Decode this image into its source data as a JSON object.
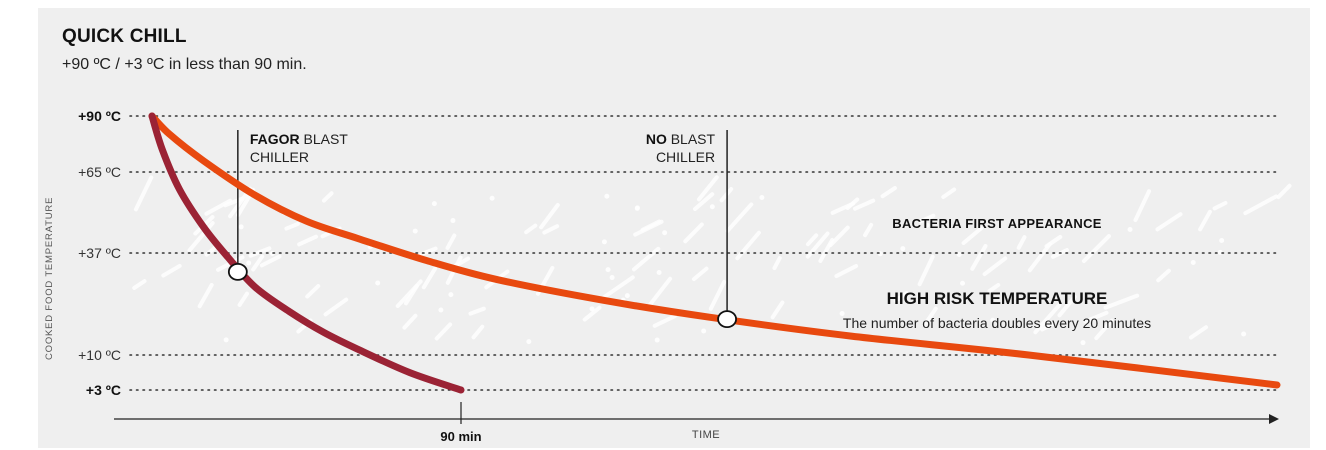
{
  "chart_data": {
    "type": "line",
    "title": "QUICK CHILL",
    "subtitle": "+90 ºC / +3 ºC in less than 90 min.",
    "xlabel": "TIME",
    "ylabel": "COOKED FOOD TEMPERATURE",
    "y_ticks": [
      {
        "label": "+90 ºC",
        "value": 90,
        "bold": true
      },
      {
        "label": "+65 ºC",
        "value": 65,
        "bold": false
      },
      {
        "label": "+37 ºC",
        "value": 37,
        "bold": false
      },
      {
        "label": "+10 ºC",
        "value": 10,
        "bold": false
      },
      {
        "label": "+3 ºC",
        "value": 3,
        "bold": true
      }
    ],
    "x_ticks": [
      {
        "label": "90 min",
        "value": 90
      }
    ],
    "xlim": [
      0,
      320
    ],
    "ylim": [
      0,
      90
    ],
    "grid": "dotted horizontal at tick values",
    "series": [
      {
        "name": "FAGOR BLAST CHILLER",
        "color": "#9b2335",
        "x": [
          0,
          3,
          8,
          15,
          22,
          30,
          40,
          50,
          60,
          75,
          90
        ],
        "y": [
          90,
          75,
          59,
          46,
          36,
          28,
          21.5,
          16,
          11.5,
          6.5,
          3
        ]
      },
      {
        "name": "NO BLAST CHILLER",
        "color": "#e8490f",
        "x": [
          0,
          5,
          15,
          30,
          45,
          60,
          80,
          100,
          130,
          160,
          200,
          250,
          320
        ],
        "y": [
          90,
          82,
          70,
          57,
          48,
          42,
          35,
          30,
          24.5,
          20,
          15,
          10,
          4
        ]
      }
    ],
    "annotations": [
      {
        "id": "fagor",
        "bold": "FAGOR",
        "rest": " BLAST",
        "line2": "CHILLER",
        "point": {
          "x": 25,
          "y": 32
        }
      },
      {
        "id": "no",
        "bold": "NO",
        "rest": " BLAST",
        "line2": "CHILLER",
        "point": {
          "x": 165,
          "y": 19.5
        }
      }
    ],
    "zones": {
      "bacteria": "BACTERIA FIRST APPEARANCE",
      "high_risk_title": "HIGH RISK TEMPERATURE",
      "high_risk_text": "The number of bacteria doubles every 20 minutes"
    }
  }
}
